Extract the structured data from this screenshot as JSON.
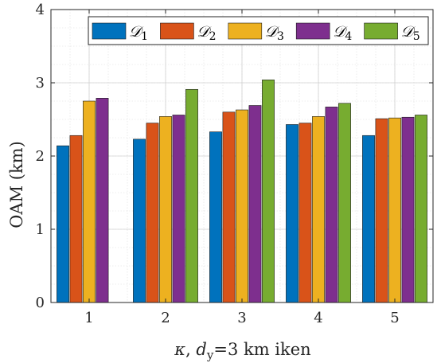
{
  "chart_data": {
    "type": "bar",
    "categories": [
      "1",
      "2",
      "3",
      "4",
      "5"
    ],
    "series": [
      {
        "name": "D1",
        "sub": "1",
        "color": "#0072BD",
        "values": [
          2.14,
          2.23,
          2.33,
          2.43,
          2.28
        ]
      },
      {
        "name": "D2",
        "sub": "2",
        "color": "#D95319",
        "values": [
          2.28,
          2.45,
          2.6,
          2.45,
          2.51
        ]
      },
      {
        "name": "D3",
        "sub": "3",
        "color": "#EDB120",
        "values": [
          2.75,
          2.54,
          2.63,
          2.54,
          2.52
        ]
      },
      {
        "name": "D4",
        "sub": "4",
        "color": "#7E2F8E",
        "values": [
          2.79,
          2.56,
          2.69,
          2.67,
          2.53
        ]
      },
      {
        "name": "D5",
        "sub": "5",
        "color": "#77AC30",
        "values": [
          null,
          2.91,
          3.04,
          2.72,
          2.56
        ]
      }
    ],
    "ylim": [
      0,
      4
    ],
    "yticks": [
      "0",
      "1",
      "2",
      "3",
      "4"
    ],
    "ylabel": "OAM (km)",
    "xlabel": {
      "kappa": "κ",
      "d": "d",
      "d_sub": "y",
      "rest": "=3 km iken"
    },
    "legend_position": "top-right",
    "grid": true
  }
}
